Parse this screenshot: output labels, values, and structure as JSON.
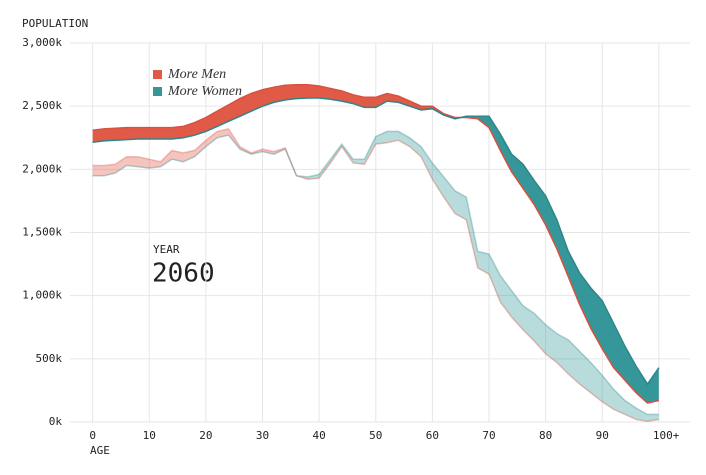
{
  "chart_data": {
    "type": "area",
    "y_axis_label": "POPULATION",
    "x_axis_label": "AGE",
    "year_label": "YEAR",
    "year": "2060",
    "legend": [
      {
        "label": "More Men",
        "color": "#e05a47"
      },
      {
        "label": "More Women",
        "color": "#35979a"
      }
    ],
    "men_color": "#d9503f",
    "women_color": "#2f8589",
    "x": [
      0,
      2,
      4,
      6,
      8,
      10,
      12,
      14,
      16,
      18,
      20,
      22,
      24,
      26,
      28,
      30,
      32,
      34,
      36,
      38,
      40,
      42,
      44,
      46,
      48,
      50,
      52,
      54,
      56,
      58,
      60,
      62,
      64,
      66,
      68,
      70,
      72,
      74,
      76,
      78,
      80,
      82,
      84,
      86,
      88,
      90,
      92,
      94,
      96,
      98,
      100
    ],
    "men": [
      2310000,
      2320000,
      2325000,
      2330000,
      2330000,
      2330000,
      2330000,
      2330000,
      2340000,
      2370000,
      2410000,
      2460000,
      2510000,
      2560000,
      2600000,
      2630000,
      2650000,
      2665000,
      2670000,
      2670000,
      2660000,
      2640000,
      2620000,
      2590000,
      2570000,
      2570000,
      2600000,
      2580000,
      2540000,
      2500000,
      2500000,
      2440000,
      2410000,
      2410000,
      2400000,
      2330000,
      2150000,
      1980000,
      1850000,
      1720000,
      1560000,
      1370000,
      1150000,
      930000,
      740000,
      580000,
      430000,
      330000,
      230000,
      150000,
      170000
    ],
    "women": [
      2215000,
      2225000,
      2230000,
      2235000,
      2240000,
      2240000,
      2240000,
      2240000,
      2250000,
      2270000,
      2300000,
      2340000,
      2380000,
      2420000,
      2460000,
      2500000,
      2530000,
      2550000,
      2560000,
      2565000,
      2565000,
      2555000,
      2540000,
      2520000,
      2490000,
      2490000,
      2540000,
      2530000,
      2500000,
      2470000,
      2480000,
      2430000,
      2400000,
      2420000,
      2420000,
      2420000,
      2280000,
      2120000,
      2040000,
      1910000,
      1790000,
      1600000,
      1350000,
      1180000,
      1060000,
      960000,
      780000,
      600000,
      440000,
      300000,
      430000
    ],
    "earlier_men": [
      2030000,
      2030000,
      2040000,
      2100000,
      2100000,
      2080000,
      2060000,
      2150000,
      2130000,
      2150000,
      2230000,
      2300000,
      2320000,
      2180000,
      2130000,
      2160000,
      2140000,
      2170000,
      1950000,
      1920000,
      1930000,
      2050000,
      2180000,
      2050000,
      2040000,
      2200000,
      2210000,
      2230000,
      2180000,
      2100000,
      1920000,
      1780000,
      1650000,
      1600000,
      1220000,
      1170000,
      950000,
      830000,
      730000,
      640000,
      540000,
      470000,
      380000,
      300000,
      230000,
      160000,
      100000,
      60000,
      20000,
      5000,
      20000
    ],
    "earlier_women": [
      1950000,
      1950000,
      1970000,
      2030000,
      2020000,
      2010000,
      2020000,
      2080000,
      2060000,
      2100000,
      2180000,
      2250000,
      2270000,
      2160000,
      2120000,
      2140000,
      2120000,
      2160000,
      1950000,
      1940000,
      1960000,
      2080000,
      2200000,
      2080000,
      2080000,
      2260000,
      2300000,
      2300000,
      2250000,
      2180000,
      2050000,
      1940000,
      1830000,
      1780000,
      1350000,
      1330000,
      1160000,
      1040000,
      920000,
      860000,
      770000,
      700000,
      650000,
      560000,
      470000,
      370000,
      260000,
      170000,
      110000,
      60000,
      60000
    ],
    "xlim": [
      -4,
      105.5
    ],
    "ylim": [
      0,
      3000000
    ],
    "xticks": [
      0,
      10,
      20,
      30,
      40,
      50,
      60,
      70,
      80,
      90,
      {
        "value": 100,
        "label": "100+"
      }
    ],
    "yticks": [
      {
        "value": 0,
        "label": "0k"
      },
      {
        "value": 500000,
        "label": "500k"
      },
      {
        "value": 1000000,
        "label": "1,000k"
      },
      {
        "value": 1500000,
        "label": "1,500k"
      },
      {
        "value": 2000000,
        "label": "2,000k"
      },
      {
        "value": 2500000,
        "label": "2,500k"
      },
      {
        "value": 3000000,
        "label": "3,000k"
      }
    ],
    "grid": true
  }
}
